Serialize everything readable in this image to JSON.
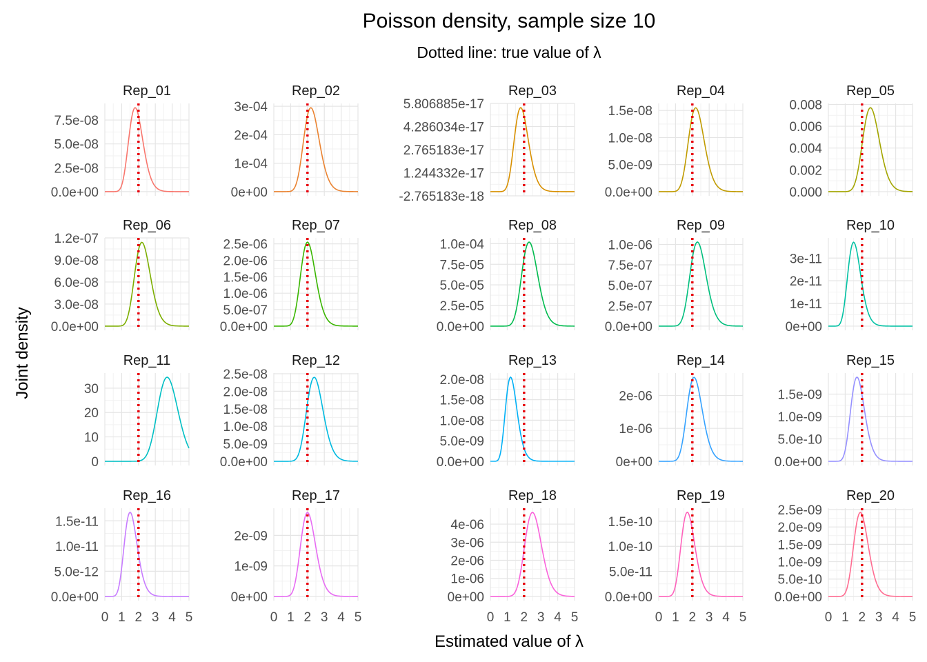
{
  "chart_data": {
    "type": "line",
    "title": "Poisson density, sample size 10",
    "subtitle": "Dotted line: true value of λ",
    "xlabel": "Estimated value of λ",
    "ylabel": "Joint density",
    "xlim": [
      0,
      5
    ],
    "x_ticks": [
      "0",
      "1",
      "2",
      "3",
      "4",
      "5"
    ],
    "true_value": 2,
    "true_line_color": "#e8000b",
    "grid": true,
    "panels": [
      {
        "name": "Rep_01",
        "color": "#f8766d",
        "mode": 1.8,
        "peak": 8.8e-08,
        "yticks": [
          "0.0e+00",
          "2.5e-08",
          "5.0e-08",
          "7.5e-08"
        ],
        "ytick_values": [
          0,
          2.5e-08,
          5e-08,
          7.5e-08
        ],
        "ylim": [
          -4.4e-09,
          9.24e-08
        ]
      },
      {
        "name": "Rep_02",
        "color": "#ea8331",
        "mode": 2.2,
        "peak": 0.000295,
        "yticks": [
          "0e+00",
          "1e-04",
          "2e-04",
          "3e-04"
        ],
        "ytick_values": [
          0,
          0.0001,
          0.0002,
          0.0003
        ],
        "ylim": [
          -1.48e-05,
          0.00031
        ]
      },
      {
        "name": "Rep_03",
        "color": "#d89000",
        "mode": 1.8,
        "peak": 5.53e-17,
        "yticks": [
          "-2.765183e-18",
          "1.244332e-17",
          "2.765183e-17",
          "4.286034e-17",
          "5.806885e-17"
        ],
        "ytick_values": [
          -2.765183e-18,
          1.244332e-17,
          2.765183e-17,
          4.286034e-17,
          5.806885e-17
        ],
        "ylim": [
          -2.765183e-18,
          5.806885e-17
        ]
      },
      {
        "name": "Rep_04",
        "color": "#c09b00",
        "mode": 2.2,
        "peak": 1.55e-08,
        "yticks": [
          "0.0e+00",
          "5.0e-09",
          "1.0e-08",
          "1.5e-08"
        ],
        "ytick_values": [
          0,
          5e-09,
          1e-08,
          1.5e-08
        ],
        "ylim": [
          -7.75e-10,
          1.63e-08
        ]
      },
      {
        "name": "Rep_05",
        "color": "#a3a500",
        "mode": 2.5,
        "peak": 0.0077,
        "yticks": [
          "0.000",
          "0.002",
          "0.004",
          "0.006",
          "0.008"
        ],
        "ytick_values": [
          0,
          0.002,
          0.004,
          0.006,
          0.008
        ],
        "ylim": [
          -0.000385,
          0.00809
        ]
      },
      {
        "name": "Rep_06",
        "color": "#7cae00",
        "mode": 2.2,
        "peak": 1.14e-07,
        "yticks": [
          "0.0e+00",
          "3.0e-08",
          "6.0e-08",
          "9.0e-08",
          "1.2e-07"
        ],
        "ytick_values": [
          0,
          3e-08,
          6e-08,
          9e-08,
          1.2e-07
        ],
        "ylim": [
          -5.7e-09,
          1.2e-07
        ]
      },
      {
        "name": "Rep_07",
        "color": "#39b600",
        "mode": 2.0,
        "peak": 2.55e-06,
        "yticks": [
          "0.0e+00",
          "5.0e-07",
          "1.0e-06",
          "1.5e-06",
          "2.0e-06",
          "2.5e-06"
        ],
        "ytick_values": [
          0,
          5e-07,
          1e-06,
          1.5e-06,
          2e-06,
          2.5e-06
        ],
        "ylim": [
          -1.28e-07,
          2.68e-06
        ]
      },
      {
        "name": "Rep_08",
        "color": "#00bb4e",
        "mode": 2.3,
        "peak": 0.000102,
        "yticks": [
          "0.0e+00",
          "2.5e-05",
          "5.0e-05",
          "7.5e-05",
          "1.0e-04"
        ],
        "ytick_values": [
          0,
          2.5e-05,
          5e-05,
          7.5e-05,
          0.0001
        ],
        "ylim": [
          -5.1e-06,
          0.000107
        ]
      },
      {
        "name": "Rep_09",
        "color": "#00bf7d",
        "mode": 2.3,
        "peak": 1.03e-06,
        "yticks": [
          "0.0e+00",
          "2.5e-07",
          "5.0e-07",
          "7.5e-07",
          "1.0e-06"
        ],
        "ytick_values": [
          0,
          2.5e-07,
          5e-07,
          7.5e-07,
          1e-06
        ],
        "ylim": [
          -5.15e-08,
          1.08e-06
        ]
      },
      {
        "name": "Rep_10",
        "color": "#00c1a3",
        "mode": 1.5,
        "peak": 3.7e-11,
        "yticks": [
          "0e+00",
          "1e-11",
          "2e-11",
          "3e-11"
        ],
        "ytick_values": [
          0,
          1e-11,
          2e-11,
          3e-11
        ],
        "ylim": [
          -1.85e-12,
          3.89e-11
        ]
      },
      {
        "name": "Rep_11",
        "color": "#00bfc4",
        "mode": 3.7,
        "peak": 34.5,
        "yticks": [
          "0",
          "10",
          "20",
          "30"
        ],
        "ytick_values": [
          0,
          10,
          20,
          30
        ],
        "ylim": [
          -1.73,
          36.2
        ]
      },
      {
        "name": "Rep_12",
        "color": "#00bae0",
        "mode": 2.4,
        "peak": 2.4e-08,
        "yticks": [
          "0.0e+00",
          "5.0e-09",
          "1.0e-08",
          "1.5e-08",
          "2.0e-08",
          "2.5e-08"
        ],
        "ytick_values": [
          0,
          5e-09,
          1e-08,
          1.5e-08,
          2e-08,
          2.5e-08
        ],
        "ylim": [
          -1.2e-09,
          2.52e-08
        ]
      },
      {
        "name": "Rep_13",
        "color": "#00b0f6",
        "mode": 1.2,
        "peak": 2.05e-08,
        "yticks": [
          "0.0e+00",
          "5.0e-09",
          "1.0e-08",
          "1.5e-08",
          "2.0e-08"
        ],
        "ytick_values": [
          0,
          5e-09,
          1e-08,
          1.5e-08,
          2e-08
        ],
        "ylim": [
          -1.03e-09,
          2.15e-08
        ]
      },
      {
        "name": "Rep_14",
        "color": "#35a2ff",
        "mode": 2.1,
        "peak": 2.55e-06,
        "yticks": [
          "0e+00",
          "1e-06",
          "2e-06"
        ],
        "ytick_values": [
          0,
          1e-06,
          2e-06
        ],
        "ylim": [
          -1.28e-07,
          2.68e-06
        ]
      },
      {
        "name": "Rep_15",
        "color": "#9590ff",
        "mode": 1.7,
        "peak": 1.88e-09,
        "yticks": [
          "0.0e+00",
          "5.0e-10",
          "1.0e-09",
          "1.5e-09"
        ],
        "ytick_values": [
          0,
          5e-10,
          1e-09,
          1.5e-09
        ],
        "ylim": [
          -9.4e-11,
          1.97e-09
        ]
      },
      {
        "name": "Rep_16",
        "color": "#c77cff",
        "mode": 1.5,
        "peak": 1.67e-11,
        "yticks": [
          "0.0e+00",
          "5.0e-12",
          "1.0e-11",
          "1.5e-11"
        ],
        "ytick_values": [
          0,
          5e-12,
          1e-11,
          1.5e-11
        ],
        "ylim": [
          -8.35e-13,
          1.75e-11
        ]
      },
      {
        "name": "Rep_17",
        "color": "#e76bf3",
        "mode": 2.0,
        "peak": 2.75e-09,
        "yticks": [
          "0e+00",
          "1e-09",
          "2e-09"
        ],
        "ytick_values": [
          0,
          1e-09,
          2e-09
        ],
        "ylim": [
          -1.38e-10,
          2.89e-09
        ]
      },
      {
        "name": "Rep_18",
        "color": "#fa62db",
        "mode": 2.5,
        "peak": 4.65e-06,
        "yticks": [
          "0e+00",
          "1e-06",
          "2e-06",
          "3e-06",
          "4e-06"
        ],
        "ytick_values": [
          0,
          1e-06,
          2e-06,
          3e-06,
          4e-06
        ],
        "ylim": [
          -2.33e-07,
          4.88e-06
        ]
      },
      {
        "name": "Rep_19",
        "color": "#ff62bc",
        "mode": 1.7,
        "peak": 1.68e-10,
        "yticks": [
          "0.0e+00",
          "5.0e-11",
          "1.0e-10",
          "1.5e-10"
        ],
        "ytick_values": [
          0,
          5e-11,
          1e-10,
          1.5e-10
        ],
        "ylim": [
          -8.4e-12,
          1.76e-10
        ]
      },
      {
        "name": "Rep_20",
        "color": "#ff6c91",
        "mode": 1.9,
        "peak": 2.42e-09,
        "yticks": [
          "0.0e+00",
          "5.0e-10",
          "1.0e-09",
          "1.5e-09",
          "2.0e-09",
          "2.5e-09"
        ],
        "ytick_values": [
          0,
          5e-10,
          1e-09,
          1.5e-09,
          2e-09,
          2.5e-09
        ],
        "ylim": [
          -1.21e-10,
          2.54e-09
        ]
      }
    ]
  }
}
